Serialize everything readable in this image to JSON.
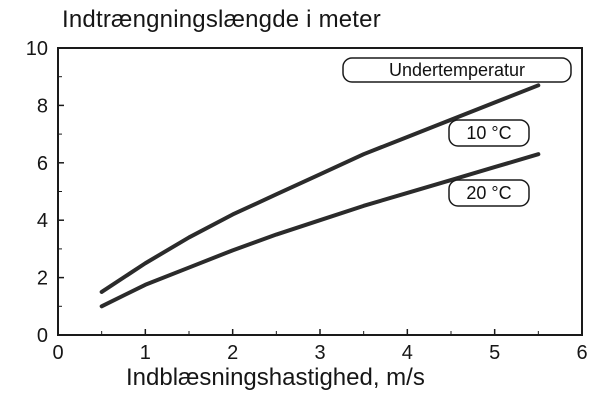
{
  "chart_data": {
    "type": "line",
    "title": "Indtrængningslængde i meter",
    "xlabel": "Indblæsningshastighed, m/s",
    "ylabel": "",
    "xlim": [
      0,
      6
    ],
    "ylim": [
      0,
      10
    ],
    "xticks": [
      0,
      1,
      2,
      3,
      4,
      5,
      6
    ],
    "yticks": [
      0,
      2,
      4,
      6,
      8,
      10
    ],
    "grid": false,
    "series": [
      {
        "name": "10 °C",
        "x": [
          0.5,
          1,
          1.5,
          2,
          2.5,
          3,
          3.5,
          4,
          4.5,
          5,
          5.5
        ],
        "y": [
          1.5,
          2.5,
          3.4,
          4.2,
          4.9,
          5.6,
          6.3,
          6.9,
          7.5,
          8.1,
          8.7
        ]
      },
      {
        "name": "20 °C",
        "x": [
          0.5,
          1,
          1.5,
          2,
          2.5,
          3,
          3.5,
          4,
          4.5,
          5,
          5.5
        ],
        "y": [
          1.0,
          1.75,
          2.35,
          2.95,
          3.5,
          4.0,
          4.5,
          4.95,
          5.4,
          5.85,
          6.3
        ]
      }
    ],
    "annotations": [
      "Undertemperatur",
      "10 °C",
      "20 °C"
    ]
  }
}
